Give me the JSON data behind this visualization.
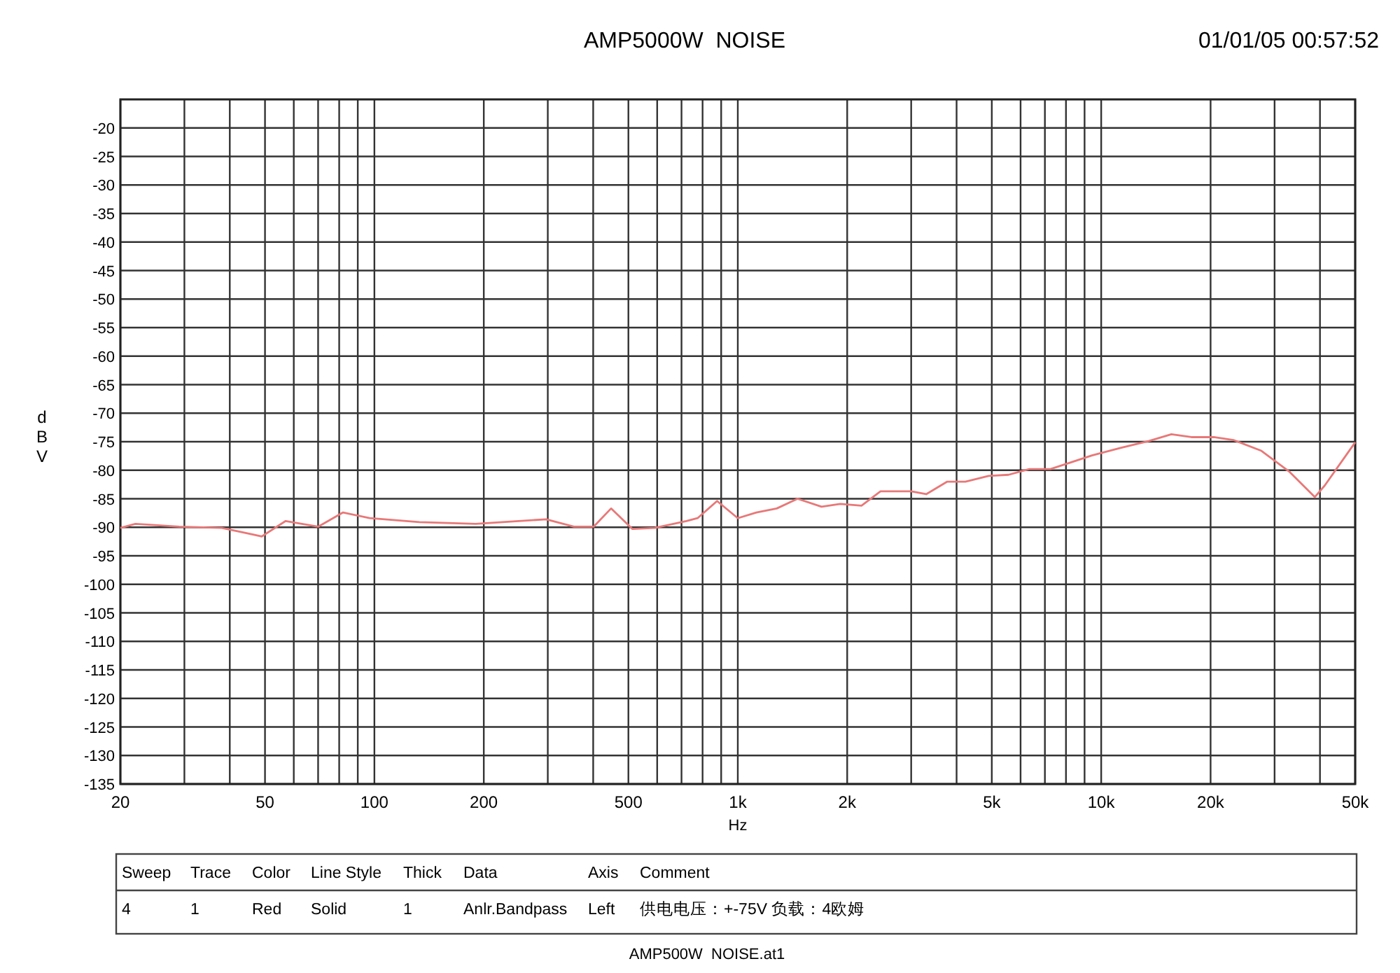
{
  "chart_data": {
    "type": "line",
    "title": "AMP5000W  NOISE",
    "xlabel": "Hz",
    "ylabel": "dBV",
    "log": "x",
    "grid": true,
    "marker": "none",
    "line_style": "solid",
    "x": [
      20,
      22,
      29,
      38,
      49,
      57,
      70,
      82,
      97,
      133,
      190,
      297,
      354,
      401,
      448,
      513,
      591,
      722,
      775,
      877,
      1000,
      1125,
      1280,
      1460,
      1700,
      1915,
      2190,
      2470,
      3000,
      3300,
      3770,
      4230,
      4900,
      5560,
      6340,
      7250,
      8270,
      9430,
      11300,
      13500,
      15600,
      17700,
      20400,
      23100,
      27600,
      33000,
      38700,
      41200,
      50000
    ],
    "series": [
      {
        "color": "#e87878",
        "values": [
          -90.1,
          -89.4,
          -89.9,
          -90.1,
          -91.6,
          -88.9,
          -89.9,
          -87.4,
          -88.4,
          -89.1,
          -89.4,
          -88.6,
          -89.9,
          -89.9,
          -86.7,
          -90.3,
          -90.1,
          -88.9,
          -88.4,
          -85.4,
          -88.4,
          -87.4,
          -86.7,
          -85.0,
          -86.4,
          -85.9,
          -86.2,
          -83.7,
          -83.7,
          -84.2,
          -82.0,
          -82.0,
          -81.0,
          -80.8,
          -79.8,
          -79.8,
          -78.6,
          -77.4,
          -76.1,
          -74.9,
          -73.7,
          -74.2,
          -74.2,
          -74.7,
          -76.6,
          -80.3,
          -84.7,
          -82.7,
          -75.1
        ]
      }
    ],
    "xlim": [
      20,
      50000
    ],
    "ylim": [
      -135,
      -15
    ],
    "xticks": [
      20,
      {
        "value": 30,
        "label": null
      },
      {
        "value": 40,
        "label": null
      },
      50,
      {
        "value": 60,
        "label": null
      },
      {
        "value": 70,
        "label": null
      },
      {
        "value": 80,
        "label": null
      },
      {
        "value": 90,
        "label": null
      },
      100,
      200,
      {
        "value": 300,
        "label": null
      },
      {
        "value": 400,
        "label": null
      },
      500,
      {
        "value": 600,
        "label": null
      },
      {
        "value": 700,
        "label": null
      },
      {
        "value": 800,
        "label": null
      },
      {
        "value": 900,
        "label": null
      },
      {
        "value": 1000,
        "label": "1k"
      },
      {
        "value": 2000,
        "label": "2k"
      },
      {
        "value": 3000,
        "label": null
      },
      {
        "value": 4000,
        "label": null
      },
      {
        "value": 5000,
        "label": "5k"
      },
      {
        "value": 6000,
        "label": null
      },
      {
        "value": 7000,
        "label": null
      },
      {
        "value": 8000,
        "label": null
      },
      {
        "value": 9000,
        "label": null
      },
      {
        "value": 10000,
        "label": "10k"
      },
      {
        "value": 20000,
        "label": "20k"
      },
      {
        "value": 30000,
        "label": null
      },
      {
        "value": 40000,
        "label": null
      },
      {
        "value": 50000,
        "label": "50k"
      }
    ],
    "yticks": [
      -20,
      -25,
      -30,
      -35,
      -40,
      -45,
      -50,
      -55,
      -60,
      -65,
      -70,
      -75,
      -80,
      -85,
      -90,
      -95,
      -100,
      -105,
      -110,
      -115,
      -120,
      -125,
      -130,
      -135
    ],
    "annotations": [
      "01/01/05 00:57:52",
      "Sweep",
      "Trace",
      "Color",
      "Line Style",
      "Thick",
      "Data",
      "Axis",
      "Comment",
      "4",
      "1",
      "Red",
      "Solid",
      "1",
      "Anlr.Bandpass",
      "Left",
      "供电电压：+-75V 负载：4欧姆",
      "AMP500W  NOISE.at1"
    ]
  }
}
